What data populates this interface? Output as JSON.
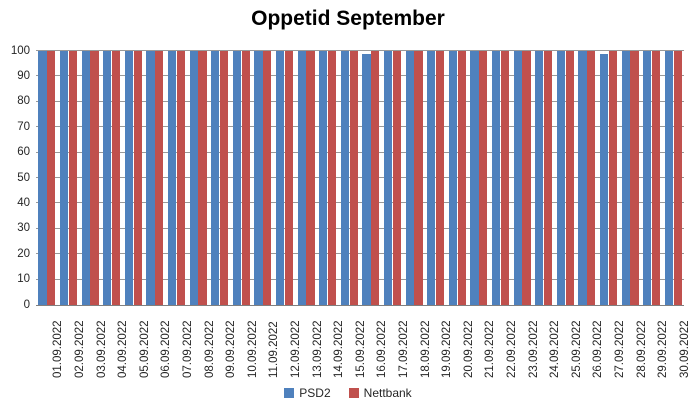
{
  "chart_data": {
    "type": "bar",
    "title": "Oppetid September",
    "categories": [
      "01.09.2022",
      "02.09.2022",
      "03.09.2022",
      "04.09.2022",
      "05.09.2022",
      "06.09.2022",
      "07.09.2022",
      "08.09.2022",
      "09.09.2022",
      "10.09.2022",
      "11.09.2022",
      "12.09.2022",
      "13.09.2022",
      "14.09.2022",
      "15.09.2022",
      "16.09.2022",
      "17.09.2022",
      "18.09.2022",
      "19.09.2022",
      "20.09.2022",
      "21.09.2022",
      "22.09.2022",
      "23.09.2022",
      "24.09.2022",
      "25.09.2022",
      "26.09.2022",
      "27.09.2022",
      "28.09.2022",
      "29.09.2022",
      "30.09.2022"
    ],
    "series": [
      {
        "name": "PSD2",
        "color": "#4F81BD",
        "values": [
          100,
          100,
          100,
          100,
          100,
          100,
          100,
          100,
          100,
          100,
          100,
          100,
          100,
          100,
          100,
          99,
          100,
          100,
          100,
          100,
          100,
          100,
          100,
          100,
          100,
          100,
          99,
          100,
          100,
          100
        ]
      },
      {
        "name": "Nettbank",
        "color": "#C0504D",
        "values": [
          100,
          100,
          100,
          100,
          100,
          100,
          100,
          100,
          100,
          100,
          100,
          100,
          100,
          100,
          100,
          100,
          100,
          100,
          100,
          100,
          100,
          100,
          100,
          100,
          100,
          100,
          100,
          100,
          100,
          100
        ]
      }
    ],
    "ylim": [
      0,
      100
    ],
    "yticks": [
      0,
      10,
      20,
      30,
      40,
      50,
      60,
      70,
      80,
      90,
      100
    ],
    "grid": true,
    "legend_position": "bottom",
    "grid_color": "#999999",
    "axis_color": "#808080",
    "text_color": "#262626"
  }
}
